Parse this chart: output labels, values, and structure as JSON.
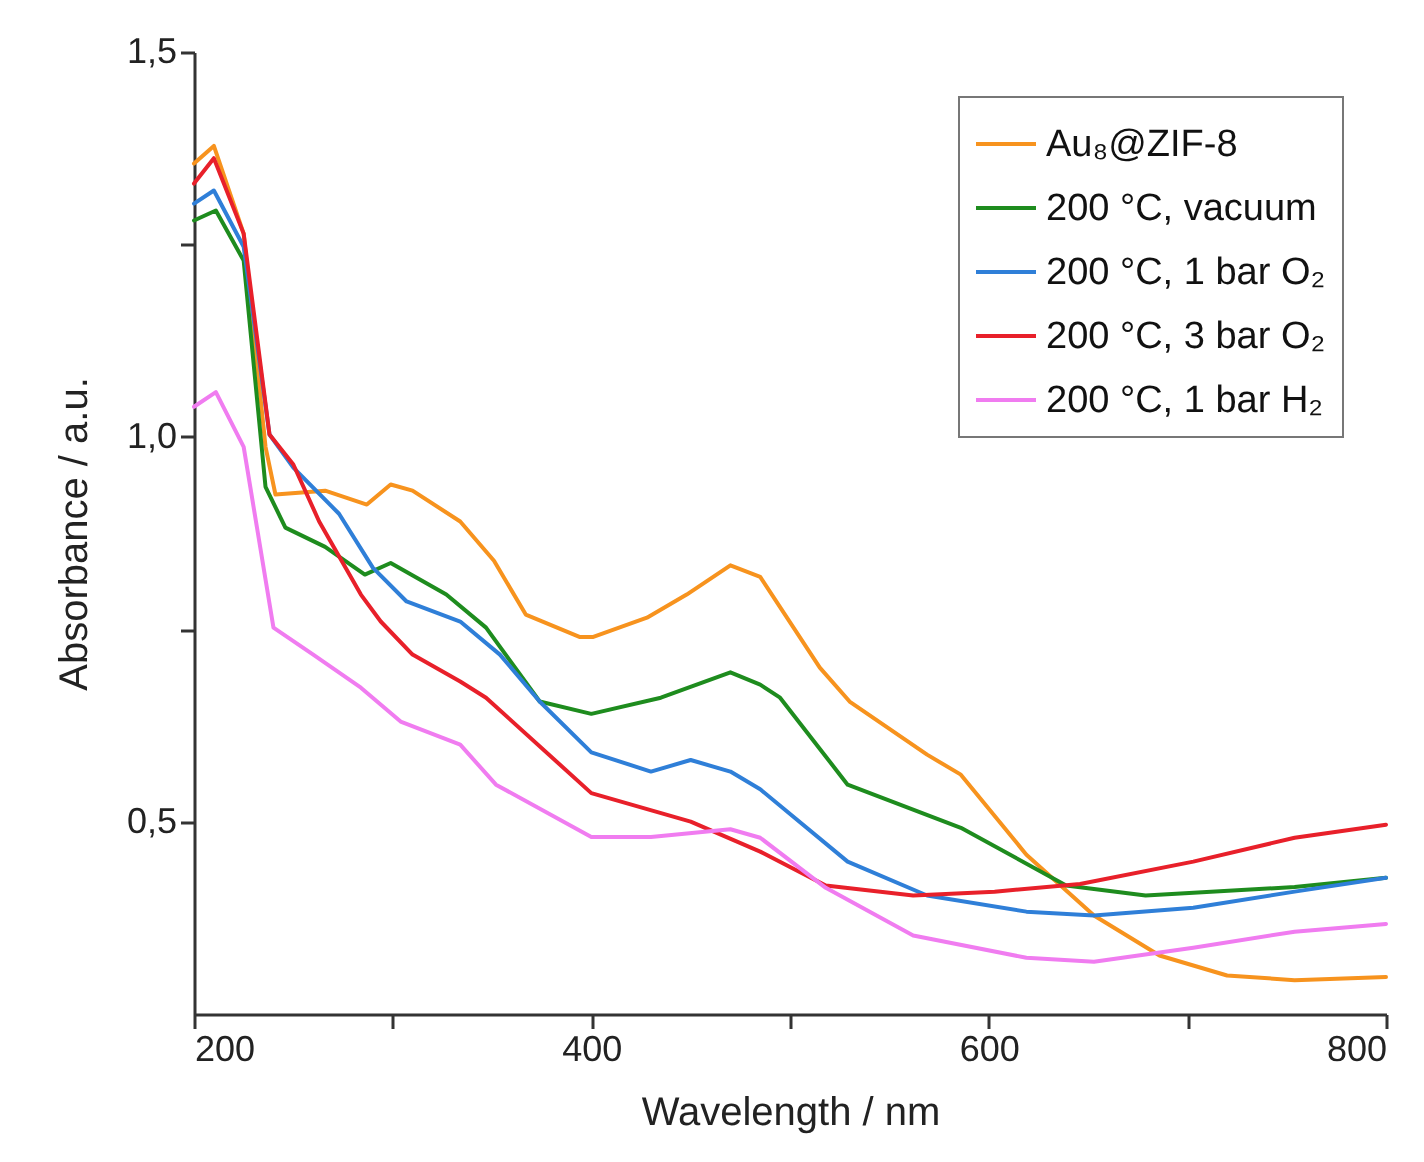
{
  "chart_data": {
    "type": "line",
    "xlabel": "Wavelength  /  nm",
    "ylabel": "Absorbance  /  a.u.",
    "xlim": [
      200,
      800
    ],
    "xticks": [
      200,
      {
        "value": 300,
        "label": null
      },
      400,
      {
        "value": 500,
        "label": null
      },
      600,
      {
        "value": 700,
        "label": null
      },
      800
    ],
    "ylim": [
      0.25,
      1.5
    ],
    "yticks": [
      {
        "value": 0.5,
        "label": "0,5"
      },
      {
        "value": 0.75,
        "label": null
      },
      {
        "value": 1.0,
        "label": "1,0"
      },
      {
        "value": 1.25,
        "label": null
      },
      {
        "value": 1.5,
        "label": "1,5"
      }
    ],
    "grid": false,
    "legend": "top right",
    "line_style": "solid",
    "marker": "none",
    "series": [
      {
        "name": "Au₈@ZIF-8",
        "color": "#f7931e",
        "x": [
          200,
          210,
          225,
          236,
          241,
          266,
          287,
          299,
          310,
          334,
          351,
          367,
          394,
          401,
          428,
          448,
          470,
          485,
          515,
          530,
          569,
          586,
          619,
          653,
          686,
          720,
          754,
          800
        ],
        "values": [
          1.355,
          1.378,
          1.264,
          0.987,
          0.925,
          0.93,
          0.912,
          0.938,
          0.93,
          0.89,
          0.839,
          0.769,
          0.74,
          0.74,
          0.765,
          0.795,
          0.833,
          0.818,
          0.7,
          0.656,
          0.587,
          0.561,
          0.457,
          0.378,
          0.326,
          0.3,
          0.294,
          0.298
        ]
      },
      {
        "name": "200 °C, vacuum",
        "color": "#1e8c1e",
        "x": [
          200,
          211,
          225,
          236,
          246,
          266,
          286,
          299,
          327,
          347,
          374,
          400,
          435,
          470,
          485,
          495,
          529,
          586,
          639,
          679,
          754,
          800
        ],
        "values": [
          1.281,
          1.294,
          1.229,
          0.935,
          0.882,
          0.857,
          0.821,
          0.836,
          0.795,
          0.752,
          0.656,
          0.64,
          0.661,
          0.694,
          0.678,
          0.661,
          0.548,
          0.492,
          0.417,
          0.404,
          0.415,
          0.427
        ]
      },
      {
        "name": "200 °C, 1 bar O₂",
        "color": "#2f7fd8",
        "x": [
          200,
          210,
          225,
          238,
          250,
          273,
          290,
          307,
          334,
          354,
          374,
          400,
          430,
          450,
          470,
          485,
          529,
          569,
          619,
          653,
          703,
          754,
          800
        ],
        "values": [
          1.303,
          1.32,
          1.247,
          1.003,
          0.96,
          0.9,
          0.83,
          0.786,
          0.76,
          0.717,
          0.656,
          0.59,
          0.565,
          0.58,
          0.565,
          0.542,
          0.448,
          0.404,
          0.383,
          0.378,
          0.388,
          0.409,
          0.427
        ]
      },
      {
        "name": "200 °C, 3 bar O₂",
        "color": "#e8202a",
        "x": [
          200,
          210,
          225,
          238,
          250,
          263,
          284,
          294,
          310,
          334,
          347,
          400,
          450,
          485,
          518,
          562,
          603,
          646,
          703,
          754,
          800
        ],
        "values": [
          1.329,
          1.362,
          1.264,
          1.003,
          0.964,
          0.89,
          0.795,
          0.76,
          0.717,
          0.682,
          0.661,
          0.537,
          0.5,
          0.461,
          0.417,
          0.404,
          0.409,
          0.419,
          0.448,
          0.479,
          0.496
        ]
      },
      {
        "name": "200 °C, 1 bar H₂",
        "color": "#f07cf0",
        "x": [
          200,
          211,
          225,
          240,
          260,
          284,
          304,
          334,
          352,
          400,
          430,
          470,
          485,
          518,
          562,
          619,
          653,
          703,
          754,
          800
        ],
        "values": [
          1.039,
          1.058,
          0.987,
          0.752,
          0.717,
          0.674,
          0.63,
          0.6,
          0.548,
          0.48,
          0.48,
          0.49,
          0.479,
          0.414,
          0.352,
          0.323,
          0.318,
          0.336,
          0.357,
          0.367
        ]
      }
    ]
  }
}
